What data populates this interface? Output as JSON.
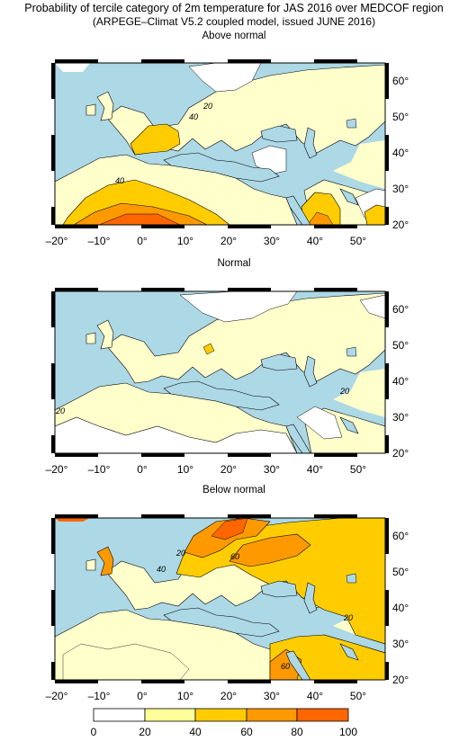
{
  "header": {
    "title": "Probability of tercile category of 2m temperature for JAS 2016 over MEDCOF region",
    "subtitle": "(ARPEGE–Climat V5.2 coupled model, issued JUNE  2016)"
  },
  "panels": [
    {
      "title": "Above normal",
      "contour_labels": [
        "40",
        "20",
        "40"
      ]
    },
    {
      "title": "Normal",
      "contour_labels": [
        "20",
        "20"
      ]
    },
    {
      "title": "Below normal",
      "contour_labels": [
        "40",
        "20",
        "60",
        "20",
        "60"
      ]
    }
  ],
  "axes": {
    "lon_ticks": [
      "–20°",
      "–10°",
      "0°",
      "10°",
      "20°",
      "30°",
      "40°",
      "50°"
    ],
    "lat_ticks": [
      "20°",
      "30°",
      "40°",
      "50°",
      "60°"
    ]
  },
  "legend": {
    "ticks": [
      "0",
      "20",
      "40",
      "60",
      "80",
      "100"
    ],
    "colors": [
      "#ffffff",
      "#ffff99",
      "#ffcc00",
      "#ff9900",
      "#ff6600"
    ]
  },
  "colors": {
    "sea": "#add8e6",
    "land_low": "#ffffff",
    "land_20": "#ffffcc",
    "land_40": "#ffcc00",
    "land_60": "#ff9900",
    "land_80": "#ff6600"
  }
}
